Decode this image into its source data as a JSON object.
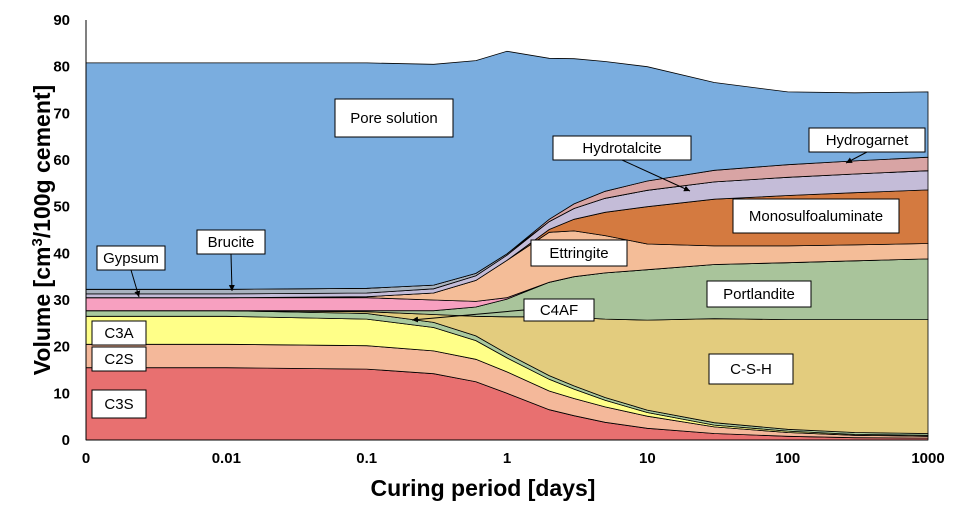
{
  "chart_data": {
    "type": "area",
    "xlabel": "Curing period [days]",
    "ylabel_main": "Volume [cm",
    "ylabel_sup": "3",
    "ylabel_tail": "/100g cement]",
    "x_scale": "log",
    "xlim": [
      0.001,
      1000
    ],
    "ylim": [
      0,
      90
    ],
    "x_tick_labels": [
      "0",
      "0.01",
      "0.1",
      "1",
      "10",
      "100",
      "1000"
    ],
    "y_ticks": [
      0,
      10,
      20,
      30,
      40,
      50,
      60,
      70,
      80,
      90
    ],
    "x": [
      0.001,
      0.01,
      0.1,
      0.3,
      0.6,
      1,
      2,
      3,
      5,
      10,
      30,
      100,
      300,
      1000
    ],
    "series": [
      {
        "name": "C3S",
        "color": "#e87070",
        "values": [
          15.5,
          15.5,
          15.2,
          14.2,
          12.5,
          10,
          6.5,
          5.2,
          3.8,
          2.5,
          1.4,
          0.8,
          0.5,
          0.4
        ]
      },
      {
        "name": "C2S",
        "color": "#f4b89a",
        "values": [
          5,
          5,
          5,
          4.9,
          4.8,
          4.6,
          4,
          3.7,
          3.3,
          2.6,
          1.4,
          0.8,
          0.5,
          0.4
        ]
      },
      {
        "name": "C3A",
        "color": "#ffff88",
        "values": [
          6,
          6,
          5.7,
          5,
          4,
          3,
          2.5,
          2,
          1.4,
          0.8,
          0.4,
          0.3,
          0.2,
          0.2
        ]
      },
      {
        "name": "C4AF",
        "color": "#a9c99e",
        "values": [
          1.2,
          1.2,
          1.2,
          1.1,
          1,
          0.9,
          0.8,
          0.7,
          0.6,
          0.5,
          0.5,
          0.4,
          0.4,
          0.4
        ]
      },
      {
        "name": "C-S-H",
        "color": "#e3cc7e",
        "values": [
          0,
          0,
          0.4,
          1.7,
          4.2,
          7.9,
          12.6,
          14.7,
          16.8,
          19.3,
          22.3,
          23.5,
          24.2,
          24.4
        ]
      },
      {
        "name": "Portlandite",
        "color": "#a9c49b",
        "values": [
          0,
          0,
          0.2,
          0.8,
          2,
          3.8,
          7.4,
          8.7,
          9.9,
          10.8,
          11.6,
          12.2,
          12.6,
          13
        ]
      },
      {
        "name": "Gypsum",
        "color": "#f7a0c0",
        "values": [
          2.8,
          2.8,
          2.8,
          2.3,
          1.2,
          0.3,
          0,
          0,
          0,
          0,
          0,
          0,
          0,
          0
        ]
      },
      {
        "name": "Ettringite",
        "color": "#f4bd98",
        "values": [
          0,
          0,
          0.2,
          1.5,
          4.5,
          8,
          10.7,
          9.8,
          8,
          5.5,
          4,
          3.6,
          3.4,
          3.3
        ]
      },
      {
        "name": "Monosulfoaluminate",
        "color": "#d47a40",
        "values": [
          0,
          0,
          0,
          0,
          0,
          0,
          0.6,
          2.5,
          5,
          8,
          10,
          10.8,
          11.2,
          11.5
        ]
      },
      {
        "name": "Hydrotalcite",
        "color": "#c4bcd8",
        "values": [
          0.8,
          0.8,
          0.8,
          0.9,
          1,
          1.1,
          1.7,
          2.3,
          3,
          3.5,
          3.7,
          3.9,
          4,
          4.1
        ]
      },
      {
        "name": "Brucite",
        "color": "#a8b2bf",
        "values": [
          1,
          1,
          1,
          0.8,
          0.5,
          0.3,
          0,
          0,
          0,
          0,
          0,
          0,
          0,
          0
        ]
      },
      {
        "name": "Hydrogarnet",
        "color": "#d8a4a4",
        "values": [
          0,
          0,
          0,
          0,
          0,
          0,
          0.5,
          1,
          1.5,
          2,
          2.5,
          2.7,
          2.8,
          2.9
        ]
      },
      {
        "name": "Pore solution",
        "color": "#7aaddf",
        "values": [
          48.5,
          48.5,
          48.3,
          47.3,
          45.6,
          43.4,
          34.5,
          31.1,
          27.8,
          24.5,
          18.8,
          15.6,
          14.6,
          14
        ]
      }
    ],
    "annotations": [
      {
        "text": "Pore solution",
        "target": "Pore solution"
      },
      {
        "text": "Hydrotalcite",
        "target": "Hydrotalcite"
      },
      {
        "text": "Hydrogarnet",
        "target": "Hydrogarnet"
      },
      {
        "text": "Monosulfoaluminate",
        "target": "Monosulfoaluminate"
      },
      {
        "text": "Gypsum",
        "target": "Gypsum"
      },
      {
        "text": "Brucite",
        "target": "Brucite"
      },
      {
        "text": "Ettringite",
        "target": "Ettringite"
      },
      {
        "text": "Portlandite",
        "target": "Portlandite"
      },
      {
        "text": "C4AF",
        "target": "C4AF"
      },
      {
        "text": "C3A",
        "target": "C3A"
      },
      {
        "text": "C2S",
        "target": "C2S"
      },
      {
        "text": "C-S-H",
        "target": "C-S-H"
      },
      {
        "text": "C3S",
        "target": "C3S"
      }
    ],
    "grid": false,
    "legend": "none"
  }
}
